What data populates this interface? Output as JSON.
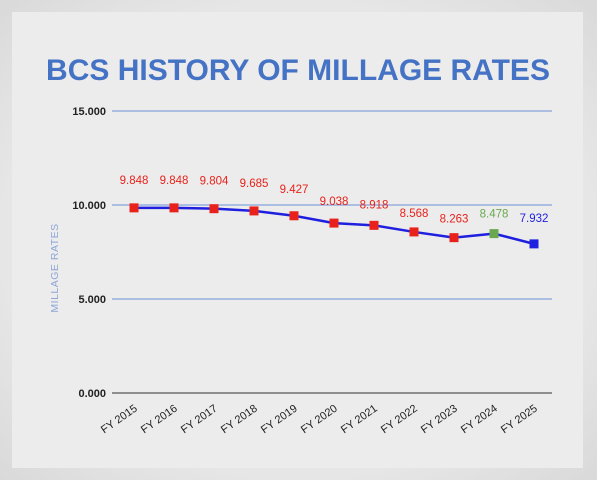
{
  "chart_data": {
    "type": "line",
    "title": "BCS HISTORY OF MILLAGE RATES",
    "xlabel": "",
    "ylabel": "MILLAGE RATES",
    "ylim": [
      0,
      15
    ],
    "yticks": [
      "0.000",
      "5.000",
      "10.000",
      "15.000"
    ],
    "grid": true,
    "legend": "none",
    "categories": [
      "FY 2015",
      "FY 2016",
      "FY 2017",
      "FY 2018",
      "FY 2019",
      "FY 2020",
      "FY 2021",
      "FY 2022",
      "FY 2023",
      "FY 2024",
      "FY 2025"
    ],
    "series": [
      {
        "values": [
          9.848,
          9.848,
          9.804,
          9.685,
          9.427,
          9.038,
          8.918,
          8.568,
          8.263,
          8.478,
          7.932
        ],
        "labels": [
          "9.848",
          "9.848",
          "9.804",
          "9.685",
          "9.427",
          "9.038",
          "8.918",
          "8.568",
          "8.263",
          "8.478",
          "7.932"
        ],
        "line_color": "#1f1fe0",
        "point_colors": [
          "#e8221b",
          "#e8221b",
          "#e8221b",
          "#e8221b",
          "#e8221b",
          "#e8221b",
          "#e8221b",
          "#e8221b",
          "#e8221b",
          "#6aa84f",
          "#1f1fe0"
        ]
      }
    ],
    "colors": {
      "title": "#4472c4",
      "gridline": "#6d8fd6",
      "ylabel": "#8ea6d8"
    }
  }
}
